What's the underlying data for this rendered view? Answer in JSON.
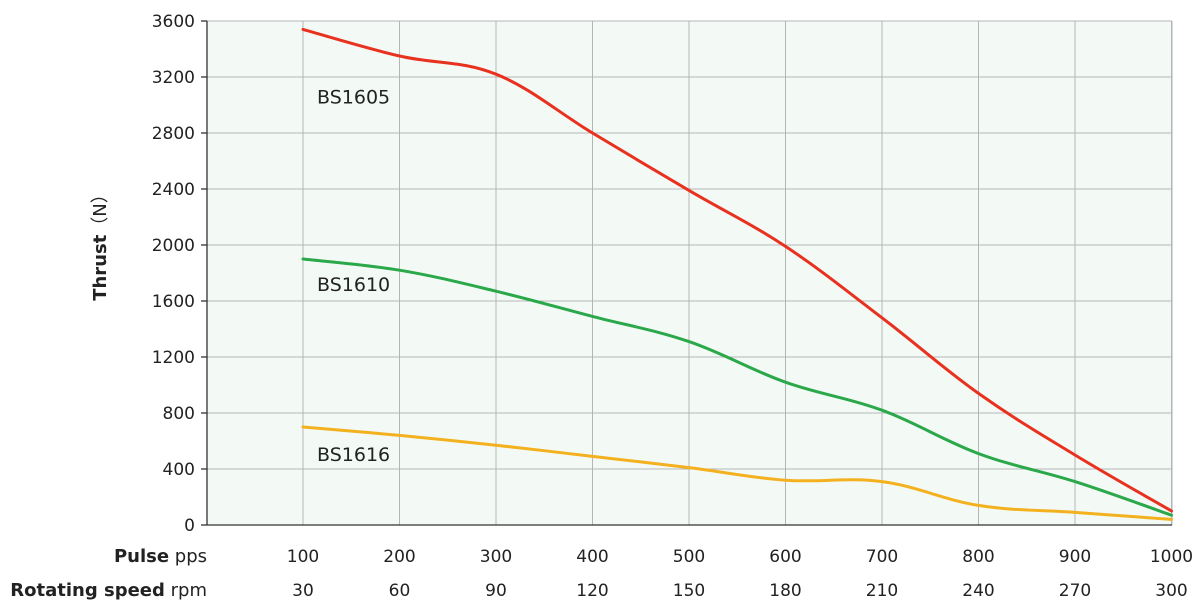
{
  "chart_data": {
    "type": "line",
    "ylabel_bold": "Thrust",
    "ylabel_unit": "（N）",
    "ylim": [
      0,
      3600
    ],
    "yticks": [
      "0",
      "400",
      "800",
      "1200",
      "1600",
      "2000",
      "2400",
      "2800",
      "3200",
      "3600"
    ],
    "x": [
      100,
      200,
      300,
      400,
      500,
      600,
      700,
      800,
      900,
      1000
    ],
    "xrow1": {
      "title_bold": "Pulse",
      "title_unit": " pps",
      "ticks": [
        "100",
        "200",
        "300",
        "400",
        "500",
        "600",
        "700",
        "800",
        "900",
        "1000"
      ]
    },
    "xrow2": {
      "title_bold": "Rotating speed",
      "title_unit": " rpm",
      "ticks": [
        "30",
        "60",
        "90",
        "120",
        "150",
        "180",
        "210",
        "240",
        "270",
        "300"
      ]
    },
    "grid": true,
    "background_color": "#f3faf6",
    "grid_color": "#b5b5b5",
    "series": [
      {
        "name": "BS1605",
        "color": "#e8321f",
        "values": [
          3540,
          3350,
          3220,
          2800,
          2390,
          1990,
          1480,
          940,
          500,
          100
        ]
      },
      {
        "name": "BS1610",
        "color": "#2aa84a",
        "values": [
          1900,
          1820,
          1670,
          1490,
          1310,
          1020,
          820,
          510,
          310,
          70
        ]
      },
      {
        "name": "BS1616",
        "color": "#f4b11f",
        "values": [
          700,
          640,
          570,
          490,
          410,
          320,
          310,
          140,
          90,
          40
        ]
      }
    ]
  }
}
